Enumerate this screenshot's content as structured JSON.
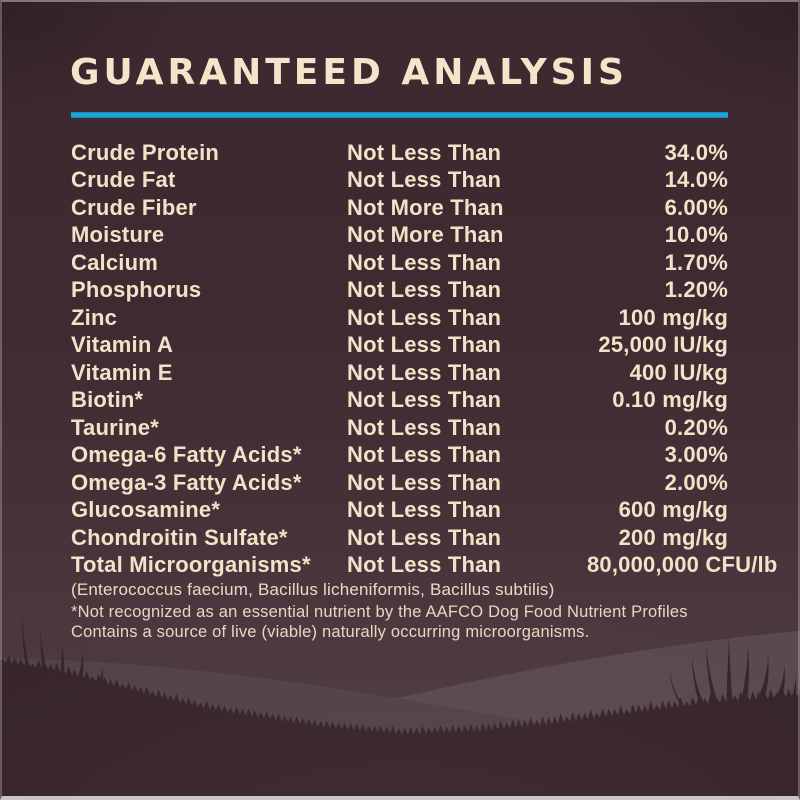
{
  "title": "GUARANTEED ANALYSIS",
  "colors": {
    "background_top": "#3c2930",
    "background_bottom": "#4e3b41",
    "text_cream": "#f1e3c8",
    "accent_blue": "#1b9ed3",
    "hill_left": "#52424a",
    "hill_right": "#5a4950",
    "grass_silhouette": "#37242c"
  },
  "table": {
    "rows": [
      {
        "name": "Crude Protein",
        "qualifier": "Not Less Than",
        "value": "34.0%"
      },
      {
        "name": "Crude Fat",
        "qualifier": "Not Less Than",
        "value": "14.0%"
      },
      {
        "name": "Crude Fiber",
        "qualifier": "Not More Than",
        "value": "6.00%"
      },
      {
        "name": "Moisture",
        "qualifier": "Not More Than",
        "value": "10.0%"
      },
      {
        "name": "Calcium",
        "qualifier": "Not Less Than",
        "value": "1.70%"
      },
      {
        "name": "Phosphorus",
        "qualifier": "Not Less Than",
        "value": "1.20%"
      },
      {
        "name": "Zinc",
        "qualifier": "Not Less Than",
        "value": "100 mg/kg"
      },
      {
        "name": "Vitamin A",
        "qualifier": "Not Less Than",
        "value": "25,000 IU/kg"
      },
      {
        "name": "Vitamin E",
        "qualifier": "Not Less Than",
        "value": "400 IU/kg"
      },
      {
        "name": "Biotin*",
        "qualifier": "Not Less Than",
        "value": "0.10 mg/kg"
      },
      {
        "name": "Taurine*",
        "qualifier": "Not Less Than",
        "value": "0.20%"
      },
      {
        "name": "Omega-6 Fatty Acids*",
        "qualifier": "Not Less Than",
        "value": "3.00%"
      },
      {
        "name": "Omega-3 Fatty Acids*",
        "qualifier": "Not Less Than",
        "value": "2.00%"
      },
      {
        "name": "Glucosamine*",
        "qualifier": "Not Less Than",
        "value": "600 mg/kg"
      },
      {
        "name": "Chondroitin Sulfate*",
        "qualifier": "Not Less Than",
        "value": "200 mg/kg"
      },
      {
        "name": "Total Microorganisms*",
        "qualifier": "Not Less Than",
        "value": "80,000,000 CFU/lb"
      }
    ]
  },
  "species_note": "(Enterococcus faecium, Bacillus licheniformis, Bacillus subtilis)",
  "footnotes": [
    "*Not recognized as an essential nutrient by the AAFCO Dog Food Nutrient Profiles",
    "Contains a source of live (viable) naturally occurring microorganisms."
  ]
}
